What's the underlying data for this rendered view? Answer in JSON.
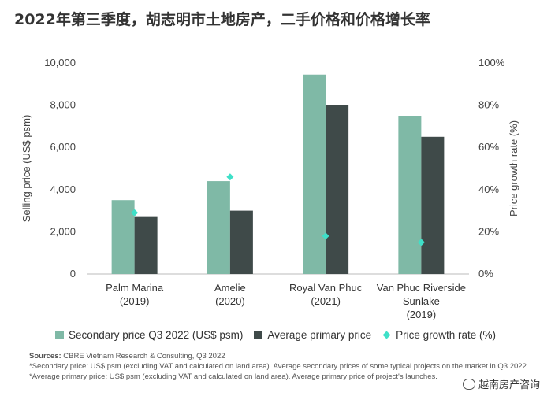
{
  "title": "2022年第三季度，胡志明市土地房产，二手价格和价格增长率",
  "chart_data": {
    "type": "bar",
    "categories": [
      [
        "Palm Marina",
        "(2019)"
      ],
      [
        "Amelie",
        "(2020)"
      ],
      [
        "Royal Van Phuc",
        "(2021)"
      ],
      [
        "Van Phuc Riverside",
        "Sunlake",
        "(2019)"
      ]
    ],
    "series": [
      {
        "name": "Secondary price Q3 2022 (US$ psm)",
        "values": [
          3500,
          4400,
          9450,
          7500
        ],
        "color": "#7fb9a6",
        "type": "bar",
        "axis": "left"
      },
      {
        "name": "Average primary price",
        "values": [
          2700,
          3000,
          8000,
          6500
        ],
        "color": "#3f4a49",
        "type": "bar",
        "axis": "left"
      },
      {
        "name": "Price growth rate (%)",
        "values": [
          29,
          46,
          18,
          15
        ],
        "color": "#3fe0c8",
        "type": "scatter",
        "axis": "right"
      }
    ],
    "ylabel": "Selling price (US$ psm)",
    "ylabel_right": "Price growth rate (%)",
    "ylim": [
      0,
      10000
    ],
    "ylim_right": [
      0,
      100
    ],
    "yticks": [
      "0",
      "2,000",
      "4,000",
      "6,000",
      "8,000",
      "10,000"
    ],
    "yticks_right": [
      "0%",
      "20%",
      "40%",
      "60%",
      "80%",
      "100%"
    ],
    "legend_position": "bottom",
    "grid": false
  },
  "notes": {
    "sources_label": "Sources:",
    "sources_text": " CBRE Vietnam Research & Consulting, Q3 2022",
    "line2": "*Secondary price: US$ psm (excluding VAT and calculated on land area). Average secondary prices of some typical projects on the market in Q3 2022.",
    "line3": "*Average primary price: US$ psm (excluding VAT and calculated on land area). Average primary price of project's launches."
  },
  "watermark": "越南房产咨询"
}
